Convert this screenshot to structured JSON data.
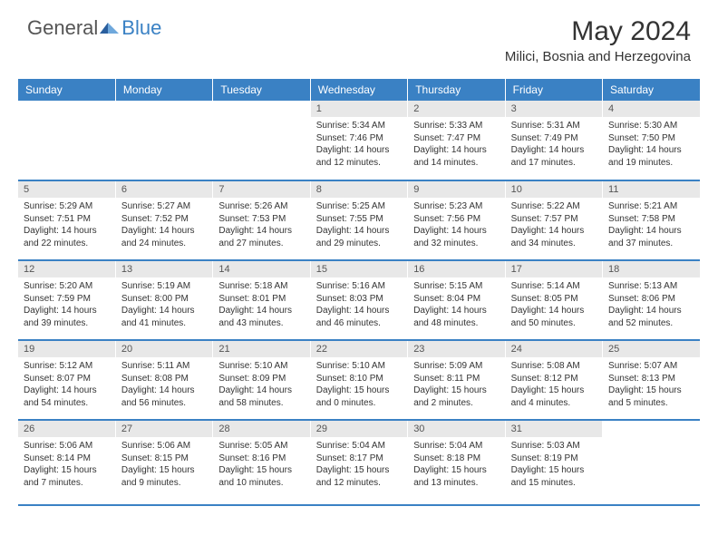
{
  "logo": {
    "general": "General",
    "blue": "Blue"
  },
  "title": "May 2024",
  "location": "Milici, Bosnia and Herzegovina",
  "colors": {
    "header_bg": "#3a81c4",
    "header_text": "#ffffff",
    "daynum_bg": "#e8e8e8",
    "text": "#333333"
  },
  "weekdays": [
    "Sunday",
    "Monday",
    "Tuesday",
    "Wednesday",
    "Thursday",
    "Friday",
    "Saturday"
  ],
  "weeks": [
    [
      {
        "n": "",
        "sr": "",
        "ss": "",
        "dl": ""
      },
      {
        "n": "",
        "sr": "",
        "ss": "",
        "dl": ""
      },
      {
        "n": "",
        "sr": "",
        "ss": "",
        "dl": ""
      },
      {
        "n": "1",
        "sr": "5:34 AM",
        "ss": "7:46 PM",
        "dl": "14 hours and 12 minutes."
      },
      {
        "n": "2",
        "sr": "5:33 AM",
        "ss": "7:47 PM",
        "dl": "14 hours and 14 minutes."
      },
      {
        "n": "3",
        "sr": "5:31 AM",
        "ss": "7:49 PM",
        "dl": "14 hours and 17 minutes."
      },
      {
        "n": "4",
        "sr": "5:30 AM",
        "ss": "7:50 PM",
        "dl": "14 hours and 19 minutes."
      }
    ],
    [
      {
        "n": "5",
        "sr": "5:29 AM",
        "ss": "7:51 PM",
        "dl": "14 hours and 22 minutes."
      },
      {
        "n": "6",
        "sr": "5:27 AM",
        "ss": "7:52 PM",
        "dl": "14 hours and 24 minutes."
      },
      {
        "n": "7",
        "sr": "5:26 AM",
        "ss": "7:53 PM",
        "dl": "14 hours and 27 minutes."
      },
      {
        "n": "8",
        "sr": "5:25 AM",
        "ss": "7:55 PM",
        "dl": "14 hours and 29 minutes."
      },
      {
        "n": "9",
        "sr": "5:23 AM",
        "ss": "7:56 PM",
        "dl": "14 hours and 32 minutes."
      },
      {
        "n": "10",
        "sr": "5:22 AM",
        "ss": "7:57 PM",
        "dl": "14 hours and 34 minutes."
      },
      {
        "n": "11",
        "sr": "5:21 AM",
        "ss": "7:58 PM",
        "dl": "14 hours and 37 minutes."
      }
    ],
    [
      {
        "n": "12",
        "sr": "5:20 AM",
        "ss": "7:59 PM",
        "dl": "14 hours and 39 minutes."
      },
      {
        "n": "13",
        "sr": "5:19 AM",
        "ss": "8:00 PM",
        "dl": "14 hours and 41 minutes."
      },
      {
        "n": "14",
        "sr": "5:18 AM",
        "ss": "8:01 PM",
        "dl": "14 hours and 43 minutes."
      },
      {
        "n": "15",
        "sr": "5:16 AM",
        "ss": "8:03 PM",
        "dl": "14 hours and 46 minutes."
      },
      {
        "n": "16",
        "sr": "5:15 AM",
        "ss": "8:04 PM",
        "dl": "14 hours and 48 minutes."
      },
      {
        "n": "17",
        "sr": "5:14 AM",
        "ss": "8:05 PM",
        "dl": "14 hours and 50 minutes."
      },
      {
        "n": "18",
        "sr": "5:13 AM",
        "ss": "8:06 PM",
        "dl": "14 hours and 52 minutes."
      }
    ],
    [
      {
        "n": "19",
        "sr": "5:12 AM",
        "ss": "8:07 PM",
        "dl": "14 hours and 54 minutes."
      },
      {
        "n": "20",
        "sr": "5:11 AM",
        "ss": "8:08 PM",
        "dl": "14 hours and 56 minutes."
      },
      {
        "n": "21",
        "sr": "5:10 AM",
        "ss": "8:09 PM",
        "dl": "14 hours and 58 minutes."
      },
      {
        "n": "22",
        "sr": "5:10 AM",
        "ss": "8:10 PM",
        "dl": "15 hours and 0 minutes."
      },
      {
        "n": "23",
        "sr": "5:09 AM",
        "ss": "8:11 PM",
        "dl": "15 hours and 2 minutes."
      },
      {
        "n": "24",
        "sr": "5:08 AM",
        "ss": "8:12 PM",
        "dl": "15 hours and 4 minutes."
      },
      {
        "n": "25",
        "sr": "5:07 AM",
        "ss": "8:13 PM",
        "dl": "15 hours and 5 minutes."
      }
    ],
    [
      {
        "n": "26",
        "sr": "5:06 AM",
        "ss": "8:14 PM",
        "dl": "15 hours and 7 minutes."
      },
      {
        "n": "27",
        "sr": "5:06 AM",
        "ss": "8:15 PM",
        "dl": "15 hours and 9 minutes."
      },
      {
        "n": "28",
        "sr": "5:05 AM",
        "ss": "8:16 PM",
        "dl": "15 hours and 10 minutes."
      },
      {
        "n": "29",
        "sr": "5:04 AM",
        "ss": "8:17 PM",
        "dl": "15 hours and 12 minutes."
      },
      {
        "n": "30",
        "sr": "5:04 AM",
        "ss": "8:18 PM",
        "dl": "15 hours and 13 minutes."
      },
      {
        "n": "31",
        "sr": "5:03 AM",
        "ss": "8:19 PM",
        "dl": "15 hours and 15 minutes."
      },
      {
        "n": "",
        "sr": "",
        "ss": "",
        "dl": ""
      }
    ]
  ],
  "labels": {
    "sunrise": "Sunrise: ",
    "sunset": "Sunset: ",
    "daylight": "Daylight: "
  }
}
